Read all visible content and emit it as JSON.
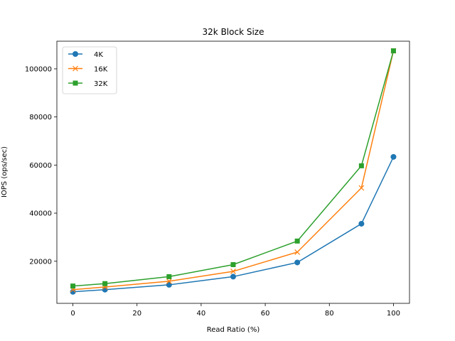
{
  "chart_data": {
    "type": "line",
    "title": "32k Block Size",
    "xlabel": "Read Ratio (%)",
    "ylabel": "IOPS (ops/sec)",
    "x": [
      0,
      10,
      30,
      50,
      70,
      90,
      100
    ],
    "xlim": [
      -5,
      105
    ],
    "ylim": [
      2500,
      111500
    ],
    "xticks": [
      0,
      20,
      40,
      60,
      80,
      100
    ],
    "yticks": [
      20000,
      40000,
      60000,
      80000,
      100000
    ],
    "grid": false,
    "legend_position": "top-left",
    "series": [
      {
        "name": "4K",
        "color": "#1f77b4",
        "marker": "circle",
        "values": [
          7300,
          8200,
          10200,
          13600,
          19500,
          35600,
          63400
        ]
      },
      {
        "name": "16K",
        "color": "#ff7f0e",
        "marker": "x",
        "values": [
          8200,
          9300,
          11700,
          15800,
          23800,
          50500,
          107500
        ]
      },
      {
        "name": "32K",
        "color": "#2ca02c",
        "marker": "square",
        "values": [
          9700,
          10700,
          13600,
          18600,
          28400,
          59700,
          107500
        ]
      }
    ]
  }
}
